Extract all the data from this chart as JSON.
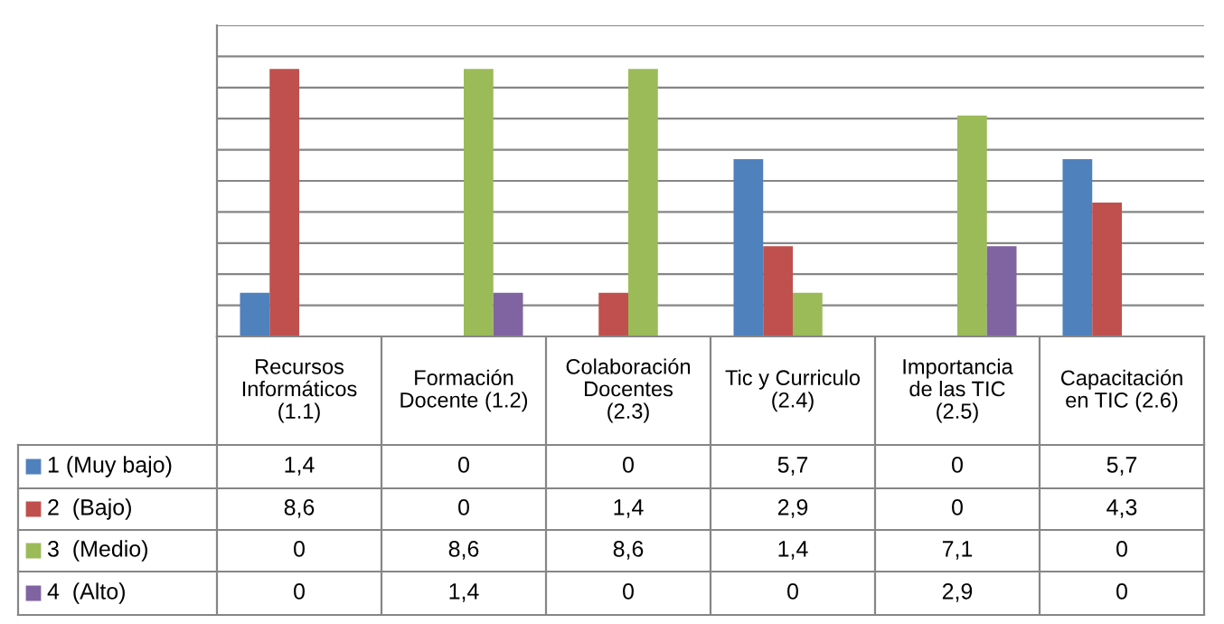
{
  "chart_data": {
    "type": "bar",
    "categories": [
      "Recursos\nInformáticos\n(1.1)",
      "Formación\nDocente (1.2)",
      "Colaboración\nDocentes\n(2.3)",
      "Tic y Curriculo\n(2.4)",
      "Importancia\nde las TIC\n(2.5)",
      "Capacitación\nen TIC (2.6)"
    ],
    "series": [
      {
        "name": "1 (Muy bajo)",
        "color": "#4f81bd",
        "values": [
          1.4,
          0,
          0,
          5.7,
          0,
          5.7
        ],
        "value_labels": [
          "1,4",
          "0",
          "0",
          "5,7",
          "0",
          "5,7"
        ]
      },
      {
        "name": "2  (Bajo)",
        "color": "#c0504d",
        "values": [
          8.6,
          0,
          1.4,
          2.9,
          0,
          4.3
        ],
        "value_labels": [
          "8,6",
          "0",
          "1,4",
          "2,9",
          "0",
          "4,3"
        ]
      },
      {
        "name": "3  (Medio)",
        "color": "#9bbb59",
        "values": [
          0,
          8.6,
          8.6,
          1.4,
          7.1,
          0
        ],
        "value_labels": [
          "0",
          "8,6",
          "8,6",
          "1,4",
          "7,1",
          "0"
        ]
      },
      {
        "name": "4  (Alto)",
        "color": "#8064a2",
        "values": [
          0,
          1.4,
          0,
          0,
          2.9,
          0
        ],
        "value_labels": [
          "0",
          "1,4",
          "0",
          "0",
          "2,9",
          "0"
        ]
      }
    ],
    "ylim": [
      0,
      10
    ],
    "yticks": [
      {
        "value": 0,
        "label": null
      },
      {
        "value": 1,
        "label": null
      },
      {
        "value": 2,
        "label": null
      },
      {
        "value": 3,
        "label": null
      },
      {
        "value": 4,
        "label": null
      },
      {
        "value": 5,
        "label": null
      },
      {
        "value": 6,
        "label": null
      },
      {
        "value": 7,
        "label": null
      },
      {
        "value": 8,
        "label": null
      },
      {
        "value": 9,
        "label": null
      },
      {
        "value": 10,
        "label": null
      }
    ],
    "grid": "y",
    "legend": "bottom"
  }
}
